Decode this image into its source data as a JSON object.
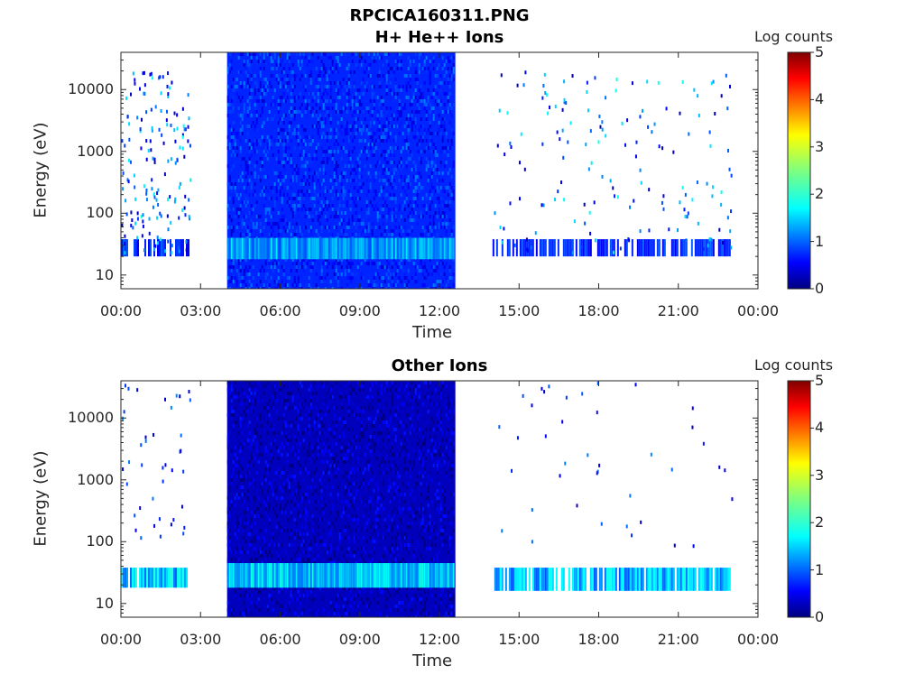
{
  "figure_title": "RPCICA160311.PNG",
  "chart_data": [
    {
      "type": "heatmap",
      "title": "H+ He++ Ions",
      "xlabel": "Time",
      "ylabel": "Energy (eV)",
      "x_ticks": [
        "00:00",
        "03:00",
        "06:00",
        "09:00",
        "12:00",
        "15:00",
        "18:00",
        "21:00",
        "00:00"
      ],
      "x_range_hours": [
        0,
        24
      ],
      "y_ticks": [
        "10",
        "100",
        "1000",
        "10000"
      ],
      "y_scale": "log",
      "y_range_eV": [
        6,
        40000
      ],
      "colorbar": {
        "label": "Log counts",
        "range": [
          0,
          5
        ],
        "ticks": [
          "0",
          "1",
          "2",
          "3",
          "4",
          "5"
        ],
        "colormap": "jet"
      },
      "data_segments": [
        {
          "start_h": 0.0,
          "end_h": 2.6,
          "coverage": "sparse",
          "mean_log_counts": 0.3
        },
        {
          "start_h": 4.0,
          "end_h": 12.6,
          "coverage": "dense",
          "mean_log_counts": 0.8,
          "band_eV": [
            18,
            40
          ],
          "band_log_counts": 1.4
        },
        {
          "start_h": 14.0,
          "end_h": 23.0,
          "coverage": "sparse",
          "mean_log_counts": 0.3
        }
      ]
    },
    {
      "type": "heatmap",
      "title": "Other Ions",
      "xlabel": "Time",
      "ylabel": "Energy (eV)",
      "x_ticks": [
        "00:00",
        "03:00",
        "06:00",
        "09:00",
        "12:00",
        "15:00",
        "18:00",
        "21:00",
        "00:00"
      ],
      "x_range_hours": [
        0,
        24
      ],
      "y_ticks": [
        "10",
        "100",
        "1000",
        "10000"
      ],
      "y_scale": "log",
      "y_range_eV": [
        6,
        40000
      ],
      "colorbar": {
        "label": "Log counts",
        "range": [
          0,
          5
        ],
        "ticks": [
          "0",
          "1",
          "2",
          "3",
          "4",
          "5"
        ],
        "colormap": "jet"
      },
      "data_segments": [
        {
          "start_h": 0.0,
          "end_h": 2.6,
          "coverage": "band",
          "band_eV": [
            18,
            38
          ],
          "band_log_counts": 1.6
        },
        {
          "start_h": 4.0,
          "end_h": 12.6,
          "coverage": "dense",
          "mean_log_counts": 0.3,
          "band_eV": [
            18,
            45
          ],
          "band_log_counts": 1.6
        },
        {
          "start_h": 14.0,
          "end_h": 23.0,
          "coverage": "band",
          "band_eV": [
            16,
            38
          ],
          "band_log_counts": 1.5
        }
      ]
    }
  ]
}
